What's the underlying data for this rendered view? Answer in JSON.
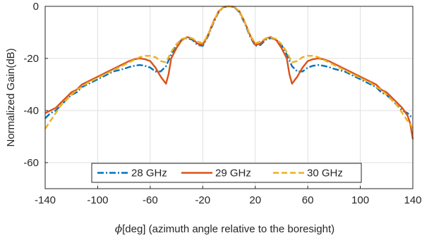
{
  "chart_data": {
    "type": "line",
    "title": "",
    "xlabel_symbol": "ϕ",
    "xlabel_text": "[deg] (azimuth angle relative to the boresight)",
    "ylabel": "Normalized Gain(dB)",
    "xlim": [
      -140,
      140
    ],
    "ylim": [
      -70,
      0
    ],
    "xticks": [
      -140,
      -100,
      -60,
      -20,
      20,
      60,
      100,
      140
    ],
    "yticks": [
      0,
      -20,
      -40,
      -60
    ],
    "grid": true,
    "legend": {
      "placement": "bottom-center",
      "orientation": "horizontal"
    },
    "series": [
      {
        "name": "28 GHz",
        "color": "#0072BD",
        "style": "dash-dot",
        "x": [
          -140,
          -136,
          -132,
          -128,
          -124,
          -120,
          -116,
          -112,
          -108,
          -104,
          -100,
          -96,
          -92,
          -88,
          -84,
          -80,
          -76,
          -72,
          -68,
          -64,
          -60,
          -56,
          -52,
          -48,
          -44,
          -40,
          -36,
          -32,
          -28,
          -24,
          -20,
          -16,
          -12,
          -8,
          -4,
          0,
          4,
          8,
          12,
          16,
          20,
          24,
          28,
          32,
          36,
          40,
          44,
          48,
          52,
          56,
          60,
          64,
          68,
          72,
          76,
          80,
          84,
          88,
          92,
          96,
          100,
          104,
          108,
          112,
          116,
          120,
          124,
          128,
          132,
          136,
          138,
          140
        ],
        "y": [
          -43,
          -41,
          -40,
          -38,
          -36,
          -34,
          -33,
          -31,
          -30,
          -29,
          -28,
          -27,
          -26,
          -25,
          -24.5,
          -24,
          -23.3,
          -22.8,
          -22.5,
          -22.8,
          -23.5,
          -25,
          -25,
          -23,
          -18.5,
          -14.8,
          -12.8,
          -12.2,
          -12.8,
          -14.8,
          -15.2,
          -11.5,
          -6.5,
          -2.3,
          -0.3,
          0,
          -0.3,
          -2.3,
          -6.5,
          -11.5,
          -15.2,
          -14.8,
          -12.8,
          -12.2,
          -12.8,
          -14.8,
          -18.5,
          -23,
          -25,
          -25,
          -23.5,
          -22.8,
          -22.5,
          -22.8,
          -23.3,
          -24,
          -24.5,
          -25,
          -26,
          -27,
          -28,
          -29,
          -30,
          -31,
          -33,
          -34,
          -36,
          -38,
          -40,
          -41,
          -42,
          -43
        ]
      },
      {
        "name": "29 GHz",
        "color": "#D95319",
        "style": "solid",
        "x": [
          -140,
          -136,
          -132,
          -128,
          -124,
          -120,
          -116,
          -112,
          -108,
          -104,
          -100,
          -96,
          -92,
          -88,
          -84,
          -80,
          -76,
          -72,
          -68,
          -64,
          -60,
          -56,
          -52,
          -48,
          -46,
          -44,
          -40,
          -36,
          -32,
          -28,
          -24,
          -20,
          -16,
          -12,
          -8,
          -4,
          0,
          4,
          8,
          12,
          16,
          20,
          24,
          28,
          32,
          36,
          40,
          44,
          46,
          48,
          52,
          56,
          60,
          64,
          68,
          72,
          76,
          80,
          84,
          88,
          92,
          96,
          100,
          104,
          108,
          112,
          116,
          120,
          124,
          128,
          132,
          136,
          138,
          140
        ],
        "y": [
          -41,
          -40,
          -39,
          -37,
          -35,
          -33,
          -32,
          -30,
          -29,
          -28,
          -27,
          -26,
          -25,
          -24,
          -23,
          -22,
          -21,
          -20.3,
          -20,
          -20.3,
          -21,
          -23.5,
          -27,
          -29.7,
          -26,
          -20,
          -16,
          -13,
          -11.8,
          -12.3,
          -14.3,
          -14.8,
          -11,
          -6,
          -2,
          -0.2,
          0,
          -0.2,
          -2,
          -6,
          -11,
          -14.8,
          -14.3,
          -12.3,
          -11.8,
          -13,
          -16,
          -20,
          -26,
          -29.7,
          -27,
          -23.5,
          -21,
          -20.3,
          -20,
          -20.3,
          -21,
          -22,
          -23,
          -24,
          -25,
          -26,
          -27,
          -28,
          -29,
          -30,
          -32,
          -33,
          -35,
          -37,
          -39,
          -42,
          -45,
          -51
        ]
      },
      {
        "name": "30 GHz",
        "color": "#EDB120",
        "style": "dashed",
        "x": [
          -140,
          -136,
          -132,
          -128,
          -124,
          -120,
          -116,
          -112,
          -108,
          -104,
          -100,
          -96,
          -92,
          -88,
          -84,
          -80,
          -76,
          -72,
          -68,
          -64,
          -60,
          -56,
          -52,
          -48,
          -44,
          -40,
          -36,
          -32,
          -28,
          -24,
          -20,
          -16,
          -12,
          -8,
          -4,
          0,
          4,
          8,
          12,
          16,
          20,
          24,
          28,
          32,
          36,
          40,
          44,
          48,
          52,
          56,
          60,
          64,
          68,
          72,
          76,
          80,
          84,
          88,
          92,
          96,
          100,
          104,
          108,
          112,
          116,
          120,
          124,
          128,
          132,
          136,
          138,
          140
        ],
        "y": [
          -47,
          -44,
          -41,
          -38,
          -36,
          -34,
          -32,
          -31,
          -29.5,
          -28.5,
          -27.5,
          -26.5,
          -25.5,
          -24.5,
          -23.5,
          -22.5,
          -21.5,
          -20.5,
          -19.5,
          -19,
          -19,
          -19.5,
          -21,
          -21.5,
          -17.5,
          -14.5,
          -12.5,
          -12,
          -12.3,
          -13.5,
          -14.2,
          -11,
          -6,
          -2,
          -0.2,
          0,
          -0.2,
          -2,
          -6,
          -11,
          -14.2,
          -13.5,
          -12.3,
          -12,
          -12.5,
          -14.5,
          -17.5,
          -21.5,
          -21,
          -19.5,
          -19,
          -19,
          -19.5,
          -20.5,
          -21.5,
          -22.5,
          -23.5,
          -24.5,
          -25.5,
          -26.5,
          -27.5,
          -28.5,
          -29.5,
          -31,
          -32,
          -34,
          -36,
          -38,
          -41,
          -44,
          -45,
          -47
        ]
      }
    ]
  }
}
